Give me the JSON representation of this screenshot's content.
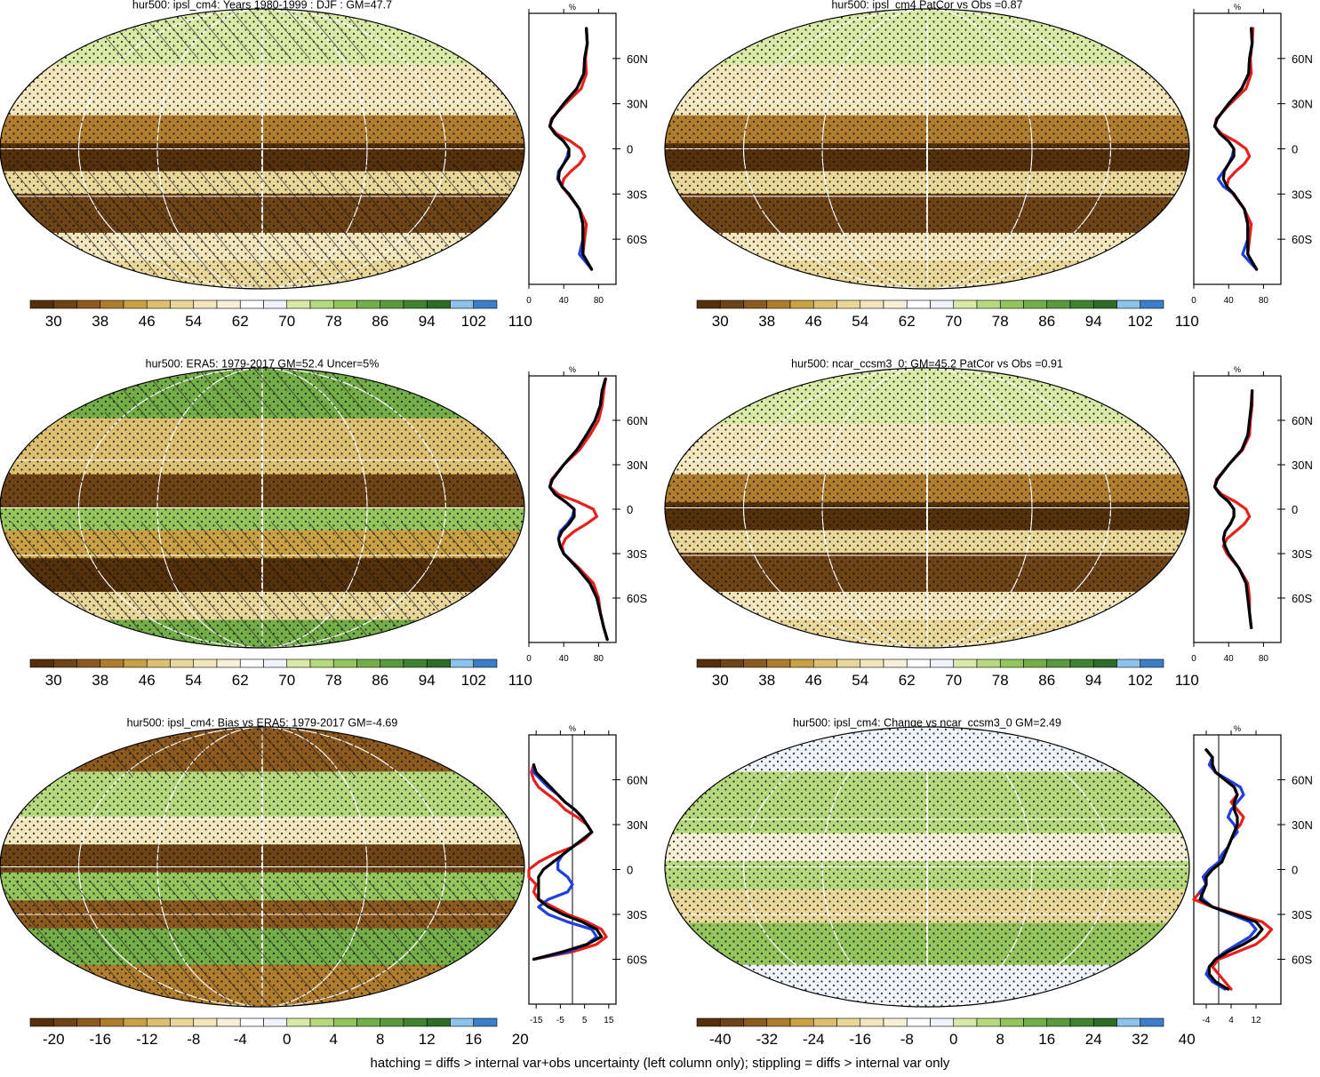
{
  "figure": {
    "footnote": "hatching = diffs > internal var+obs uncertainty (left column only); stippling = diffs > internal var only"
  },
  "colors": {
    "diverging_scale": [
      "#54300b",
      "#6e4416",
      "#8c5a1e",
      "#b07d2e",
      "#c9a144",
      "#dcbf70",
      "#e9d699",
      "#f2e6bd",
      "#f7f0d8",
      "#ffffff",
      "#f0f4fa",
      "#d9eaa6",
      "#b7d97e",
      "#94c45c",
      "#74ae48",
      "#5a9a3c",
      "#3f8431",
      "#2c6d28",
      "#8cc3ea",
      "#3a7fc7"
    ],
    "profile_model": "#e8201c",
    "profile_obs": "#1f3fe0",
    "profile_ref": "#000000",
    "latitude_band": "#bdbdbd"
  },
  "colorbars": {
    "absolute": [
      "30",
      "38",
      "46",
      "54",
      "62",
      "70",
      "78",
      "86",
      "94",
      "102",
      "110"
    ],
    "bias": [
      "-20",
      "-16",
      "-12",
      "-8",
      "-4",
      "0",
      "4",
      "8",
      "12",
      "16",
      "20"
    ],
    "change": [
      "-40",
      "-32",
      "-24",
      "-16",
      "-8",
      "0",
      "8",
      "16",
      "24",
      "32",
      "40"
    ]
  },
  "panels": [
    {
      "id": "model-mean",
      "title": "hur500: ipsl_cm4: Years 1980-1999 : DJF : GM=47.7",
      "colorbar": "absolute",
      "hatching": true
    },
    {
      "id": "patcor",
      "title": "hur500: ipsl_cm4 PatCor vs Obs =0.87",
      "colorbar": "absolute",
      "hatching": false
    },
    {
      "id": "era5",
      "title": "hur500: ERA5: 1979-2017 GM=52.4 Uncer=5%",
      "colorbar": "absolute",
      "hatching": true
    },
    {
      "id": "ncar",
      "title": "hur500: ncar_ccsm3_0: GM=45.2 PatCor vs Obs =0.91",
      "colorbar": "absolute",
      "hatching": false
    },
    {
      "id": "bias",
      "title": "hur500: ipsl_cm4: Bias vs ERA5: 1979-2017 GM=-4.69",
      "colorbar": "bias",
      "hatching": true
    },
    {
      "id": "change",
      "title": "hur500: ipsl_cm4: Change vs ncar_ccsm3_0 GM=2.49",
      "colorbar": "change",
      "hatching": false
    }
  ],
  "chart_data": [
    {
      "type": "line",
      "panel": "model-mean",
      "title": "%",
      "y_ticks": [
        "60N",
        "30N",
        "0",
        "30S",
        "60S"
      ],
      "x_ticks": [
        "0",
        "40",
        "80"
      ],
      "xlim": [
        0,
        100
      ],
      "ylim": [
        -90,
        90
      ],
      "lat": [
        80,
        70,
        60,
        50,
        40,
        30,
        20,
        15,
        10,
        5,
        0,
        -5,
        -10,
        -15,
        -20,
        -25,
        -30,
        -40,
        -50,
        -60,
        -70,
        -80
      ],
      "series": [
        {
          "color": "#e8201c",
          "values": [
            66,
            67,
            65,
            66,
            60,
            42,
            26,
            24,
            32,
            48,
            60,
            64,
            58,
            48,
            40,
            38,
            45,
            58,
            66,
            64,
            62,
            72
          ]
        },
        {
          "color": "#1f3fe0",
          "values": [
            66,
            67,
            64,
            63,
            55,
            40,
            27,
            24,
            30,
            40,
            46,
            44,
            40,
            34,
            33,
            38,
            46,
            58,
            62,
            62,
            58,
            72
          ]
        },
        {
          "color": "#000000",
          "values": [
            66,
            67,
            64,
            63,
            55,
            40,
            27,
            24,
            30,
            40,
            46,
            46,
            40,
            35,
            34,
            38,
            46,
            58,
            62,
            62,
            62,
            72
          ]
        }
      ]
    },
    {
      "type": "line",
      "panel": "patcor",
      "title": "%",
      "y_ticks": [
        "60N",
        "30N",
        "0",
        "30S",
        "60S"
      ],
      "x_ticks": [
        "0",
        "40",
        "80"
      ],
      "xlim": [
        0,
        100
      ],
      "ylim": [
        -90,
        90
      ],
      "lat": [
        80,
        70,
        60,
        50,
        40,
        30,
        20,
        15,
        10,
        5,
        0,
        -5,
        -10,
        -15,
        -20,
        -25,
        -30,
        -40,
        -50,
        -60,
        -70,
        -80
      ],
      "series": [
        {
          "color": "#e8201c",
          "values": [
            68,
            67,
            65,
            66,
            60,
            42,
            26,
            24,
            32,
            48,
            60,
            64,
            58,
            48,
            40,
            38,
            45,
            58,
            66,
            64,
            62,
            72
          ]
        },
        {
          "color": "#1f3fe0",
          "values": [
            66,
            67,
            64,
            63,
            55,
            40,
            27,
            24,
            30,
            40,
            46,
            44,
            40,
            34,
            28,
            34,
            46,
            58,
            62,
            62,
            56,
            72
          ]
        },
        {
          "color": "#000000",
          "values": [
            66,
            67,
            64,
            63,
            55,
            40,
            27,
            24,
            30,
            40,
            46,
            46,
            40,
            35,
            34,
            38,
            46,
            58,
            62,
            62,
            62,
            72
          ]
        }
      ]
    },
    {
      "type": "line",
      "panel": "era5",
      "title": "%",
      "y_ticks": [
        "60N",
        "30N",
        "0",
        "30S",
        "60S"
      ],
      "x_ticks": [
        "0",
        "40",
        "80"
      ],
      "xlim": [
        0,
        100
      ],
      "ylim": [
        -90,
        90
      ],
      "lat": [
        88,
        80,
        70,
        60,
        50,
        40,
        30,
        20,
        15,
        10,
        5,
        0,
        -5,
        -10,
        -15,
        -20,
        -25,
        -30,
        -40,
        -50,
        -60,
        -70,
        -80,
        -88
      ],
      "series": [
        {
          "color": "#e8201c",
          "values": [
            88,
            86,
            84,
            80,
            70,
            58,
            40,
            26,
            24,
            34,
            56,
            74,
            78,
            66,
            52,
            42,
            38,
            40,
            58,
            74,
            80,
            82,
            86,
            90
          ]
        },
        {
          "color": "#1f3fe0",
          "values": [
            88,
            84,
            82,
            76,
            66,
            55,
            40,
            27,
            24,
            30,
            42,
            52,
            50,
            44,
            36,
            34,
            36,
            40,
            56,
            70,
            78,
            82,
            86,
            90
          ]
        },
        {
          "color": "#000000",
          "values": [
            88,
            84,
            82,
            76,
            66,
            55,
            40,
            27,
            24,
            30,
            42,
            52,
            52,
            46,
            38,
            34,
            36,
            40,
            56,
            70,
            78,
            82,
            86,
            90
          ]
        }
      ]
    },
    {
      "type": "line",
      "panel": "ncar",
      "title": "%",
      "y_ticks": [
        "60N",
        "30N",
        "0",
        "30S",
        "60S"
      ],
      "x_ticks": [
        "0",
        "40",
        "80"
      ],
      "xlim": [
        0,
        100
      ],
      "ylim": [
        -90,
        90
      ],
      "lat": [
        80,
        70,
        60,
        50,
        40,
        30,
        20,
        15,
        10,
        5,
        0,
        -5,
        -10,
        -15,
        -20,
        -25,
        -30,
        -40,
        -50,
        -60,
        -70,
        -80
      ],
      "series": [
        {
          "color": "#e8201c",
          "values": [
            67,
            67,
            65,
            64,
            56,
            40,
            26,
            24,
            32,
            48,
            60,
            64,
            58,
            48,
            38,
            34,
            38,
            52,
            62,
            64,
            64,
            66
          ]
        },
        {
          "color": "#1f3fe0",
          "values": [
            67,
            66,
            64,
            62,
            55,
            40,
            27,
            24,
            30,
            40,
            46,
            46,
            42,
            36,
            34,
            36,
            40,
            52,
            60,
            62,
            64,
            66
          ]
        },
        {
          "color": "#000000",
          "values": [
            67,
            66,
            64,
            62,
            55,
            40,
            27,
            24,
            30,
            40,
            46,
            46,
            42,
            36,
            34,
            36,
            40,
            52,
            60,
            62,
            64,
            66
          ]
        }
      ]
    },
    {
      "type": "line",
      "panel": "bias",
      "title": "%",
      "y_ticks": [
        "60N",
        "30N",
        "0",
        "30S",
        "60S"
      ],
      "x_ticks": [
        "-15",
        "-5",
        "5",
        "15"
      ],
      "xlim": [
        -18,
        18
      ],
      "ylim": [
        -90,
        90
      ],
      "lat": [
        70,
        65,
        60,
        55,
        50,
        45,
        40,
        35,
        30,
        25,
        20,
        15,
        10,
        5,
        0,
        -5,
        -10,
        -15,
        -20,
        -25,
        -30,
        -35,
        -40,
        -45,
        -50,
        -55,
        -60
      ],
      "zero_line": 0,
      "series": [
        {
          "color": "#e8201c",
          "values": [
            -16,
            -17,
            -16,
            -14,
            -10,
            -6,
            -3,
            2,
            6,
            8,
            5,
            0,
            -8,
            -14,
            -18,
            -18,
            -15,
            -16,
            -14,
            -8,
            -2,
            6,
            12,
            14,
            10,
            0,
            -16
          ]
        },
        {
          "color": "#1f3fe0",
          "values": [
            -16,
            -16,
            -13,
            -10,
            -6,
            -3,
            1,
            4,
            6,
            8,
            4,
            0,
            -4,
            -6,
            -6,
            -2,
            0,
            -2,
            -10,
            -14,
            -10,
            -2,
            8,
            10,
            6,
            -2,
            -16
          ]
        },
        {
          "color": "#000000",
          "values": [
            -16,
            -15,
            -12,
            -9,
            -6,
            -3,
            1,
            4,
            6,
            8,
            4,
            0,
            -4,
            -8,
            -12,
            -14,
            -14,
            -14,
            -14,
            -10,
            -4,
            4,
            10,
            12,
            6,
            -4,
            -16
          ]
        }
      ]
    },
    {
      "type": "line",
      "panel": "change",
      "title": "%",
      "y_ticks": [
        "60N",
        "30N",
        "0",
        "30S",
        "60S"
      ],
      "x_ticks": [
        "-4",
        "4",
        "12"
      ],
      "xlim": [
        -8,
        20
      ],
      "ylim": [
        -90,
        90
      ],
      "lat": [
        80,
        75,
        70,
        65,
        60,
        55,
        50,
        45,
        40,
        35,
        30,
        25,
        20,
        15,
        10,
        5,
        0,
        -5,
        -10,
        -15,
        -20,
        -25,
        -30,
        -35,
        -40,
        -45,
        -50,
        -55,
        -60,
        -65,
        -70,
        -75,
        -80
      ],
      "zero_line": 0,
      "series": [
        {
          "color": "#e8201c",
          "values": [
            -4,
            -2,
            -3,
            -1,
            2,
            5,
            6,
            4,
            6,
            8,
            7,
            5,
            4,
            3,
            2,
            1,
            -3,
            -5,
            -4,
            -6,
            -8,
            -2,
            6,
            14,
            17,
            15,
            12,
            6,
            0,
            -2,
            0,
            2,
            4
          ]
        },
        {
          "color": "#1f3fe0",
          "values": [
            -4,
            -2,
            -3,
            -1,
            3,
            7,
            8,
            6,
            4,
            3,
            5,
            6,
            4,
            3,
            1,
            0,
            -3,
            -5,
            -4,
            -6,
            -5,
            -2,
            4,
            10,
            12,
            10,
            6,
            2,
            -1,
            -3,
            -4,
            -2,
            2
          ]
        },
        {
          "color": "#000000",
          "values": [
            -4,
            -2,
            -2,
            -1,
            2,
            5,
            6,
            5,
            5,
            6,
            6,
            5,
            4,
            3,
            2,
            1,
            -2,
            -4,
            -4,
            -5,
            -6,
            -2,
            5,
            12,
            14,
            12,
            8,
            3,
            -1,
            -3,
            -3,
            -1,
            3
          ]
        }
      ]
    }
  ]
}
